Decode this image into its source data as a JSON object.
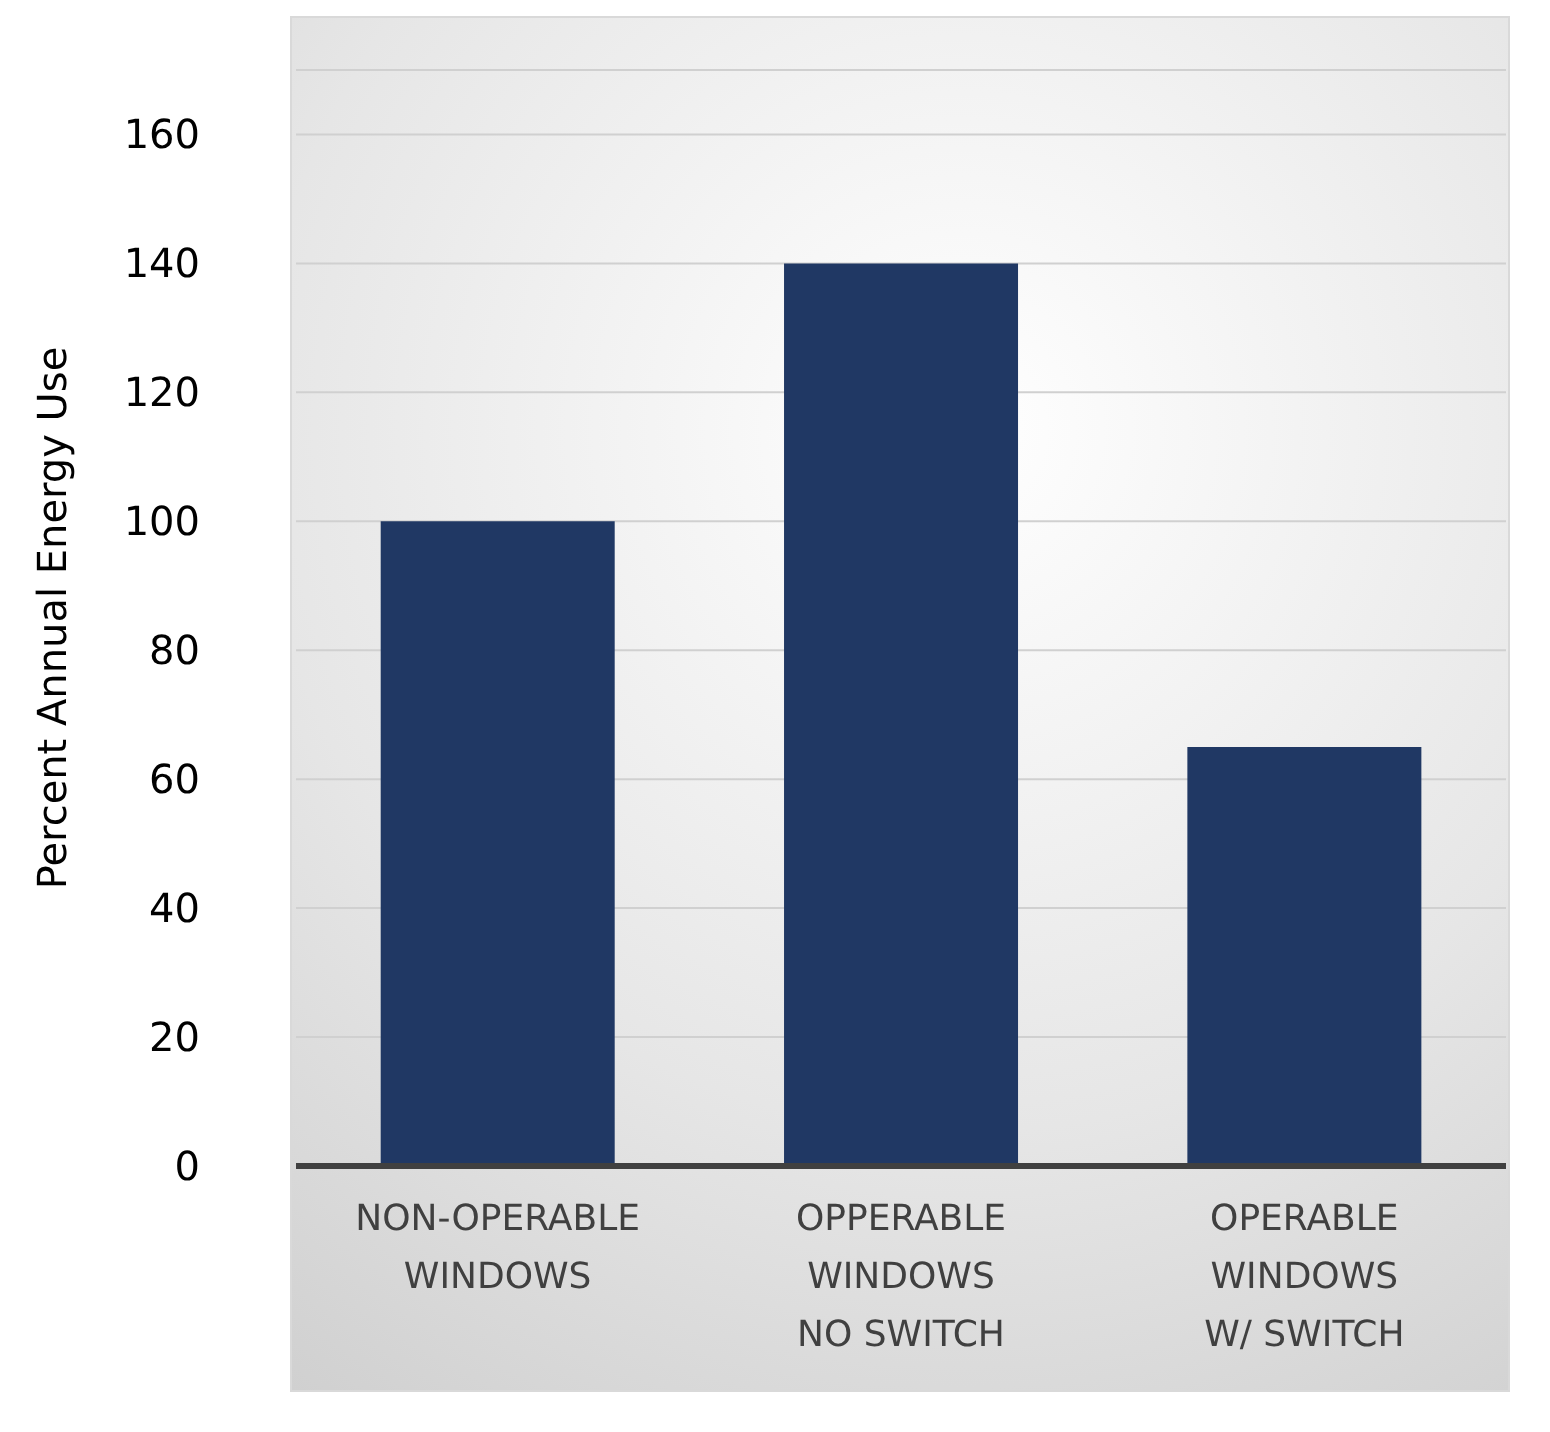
{
  "chart_data": {
    "type": "bar",
    "ylabel": "Percent Annual Energy Use",
    "categories": [
      "NON-OPERABLE\nWINDOWS",
      "OPPERABLE\nWINDOWS\nNO SWITCH",
      "OPERABLE\nWINDOWS\nW/ SWITCH"
    ],
    "values": [
      100,
      140,
      65
    ],
    "color": "#203864",
    "ylim": [
      0,
      170
    ],
    "yticks": [
      0,
      20,
      40,
      60,
      80,
      100,
      120,
      140,
      160
    ],
    "grid": "y"
  }
}
